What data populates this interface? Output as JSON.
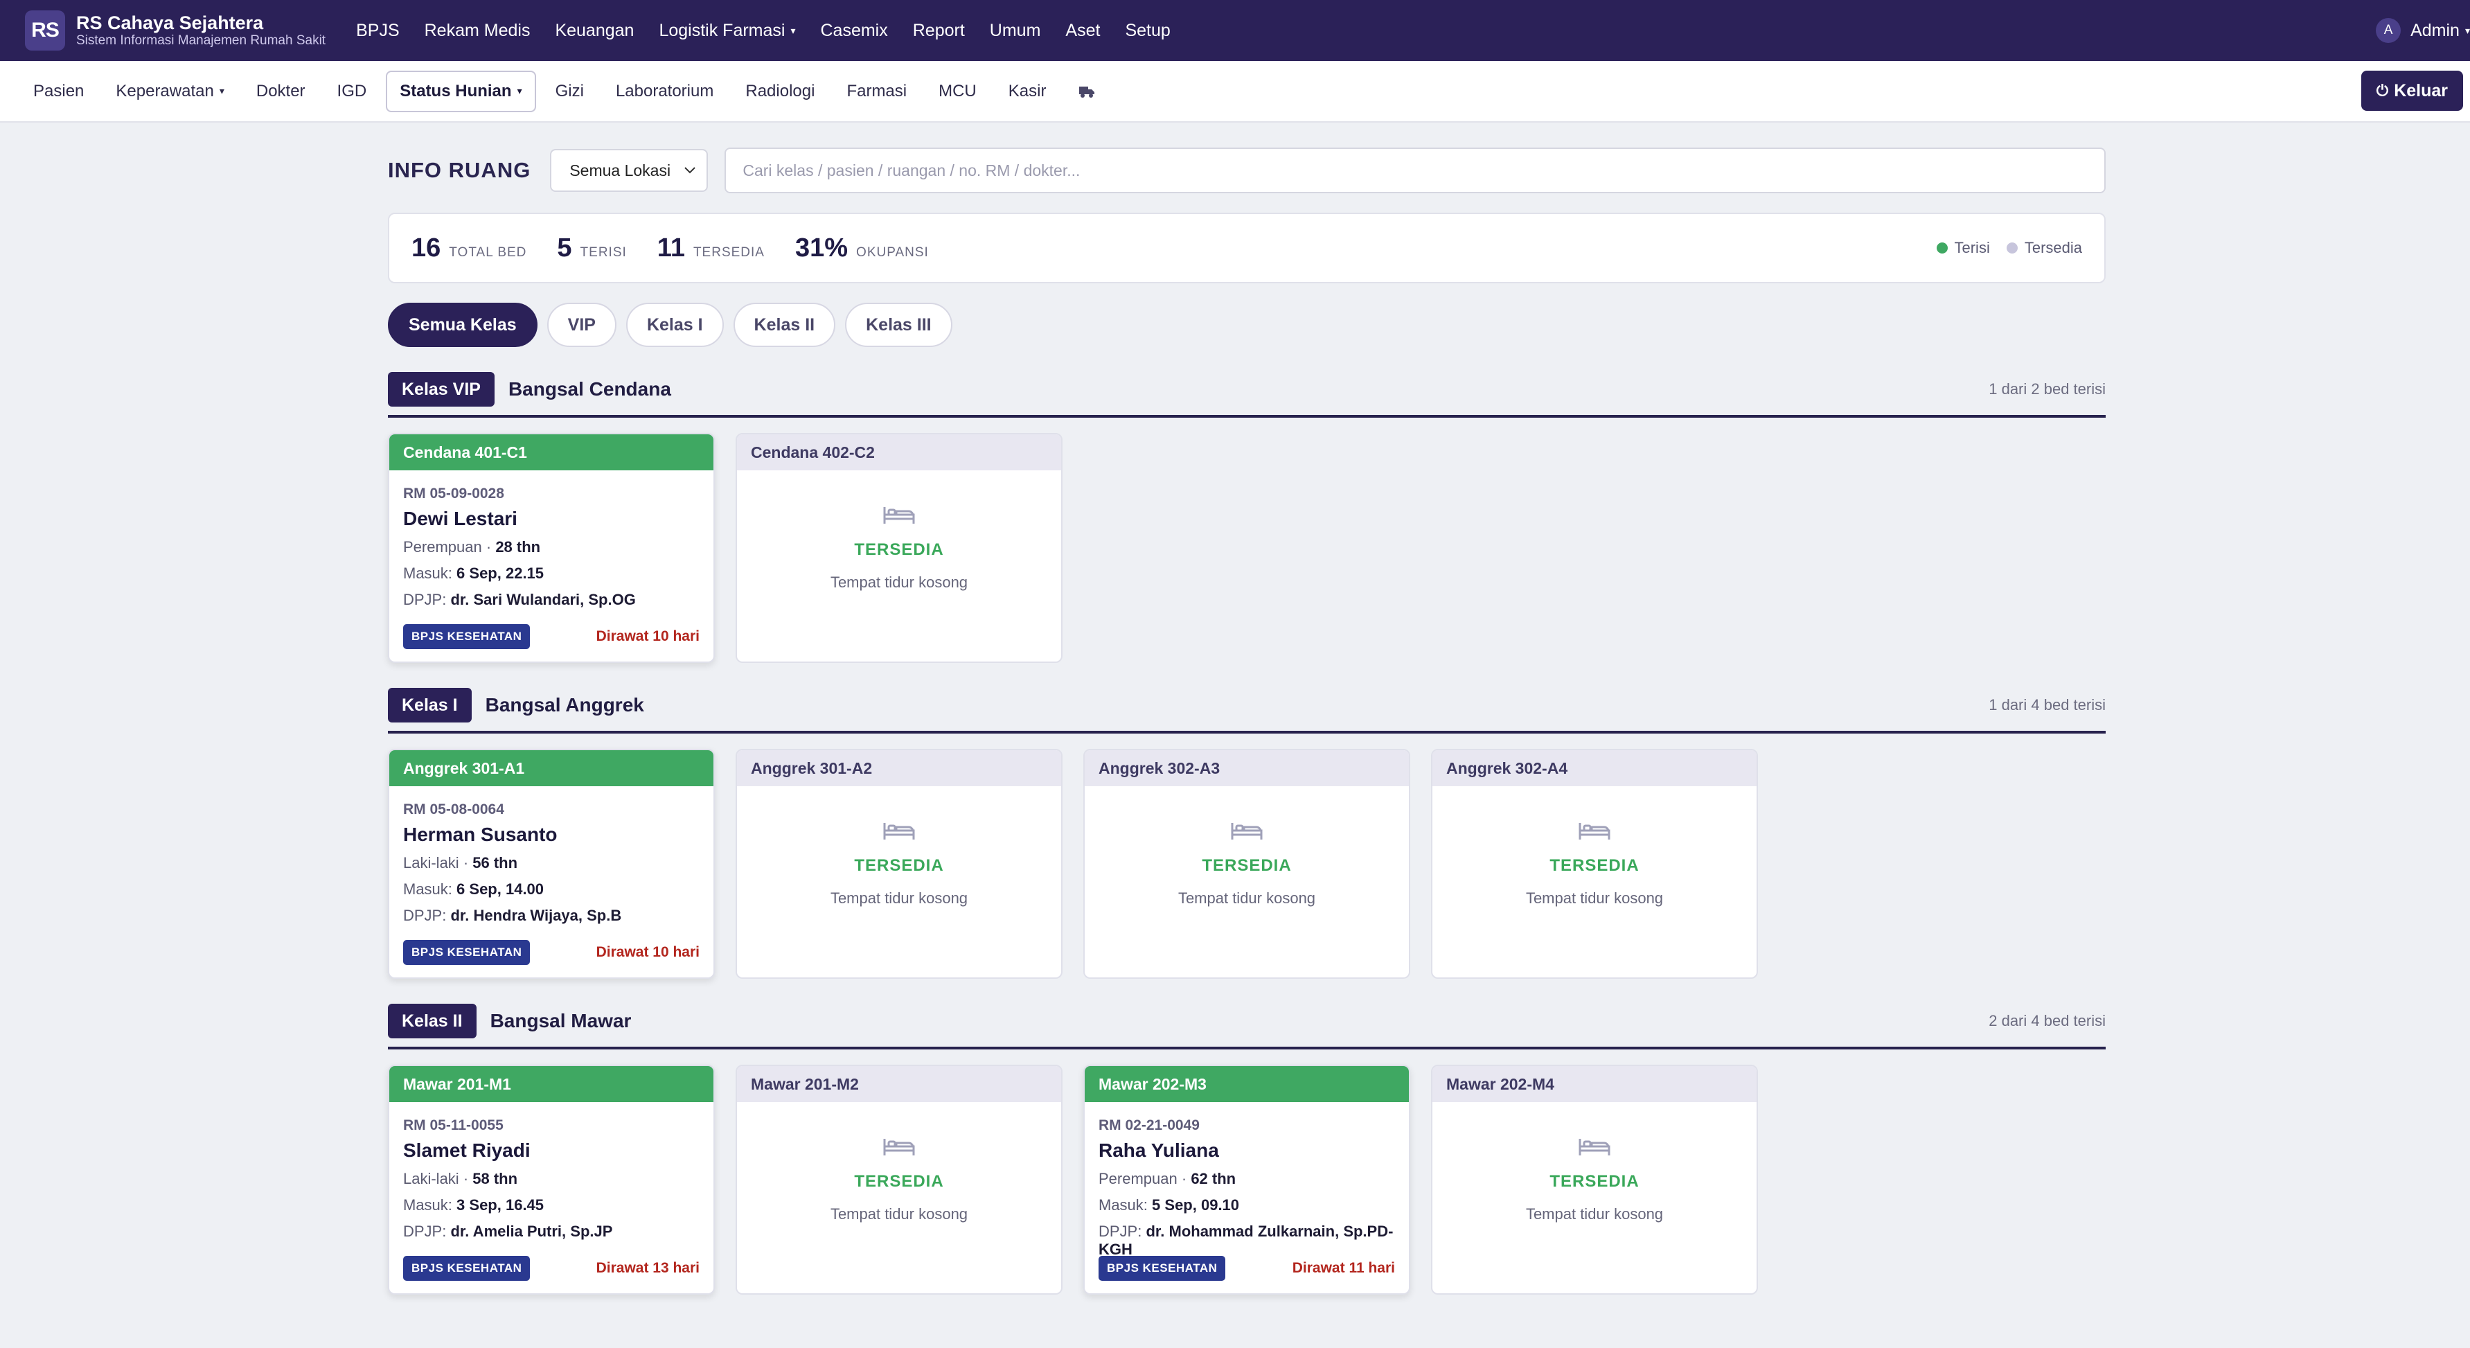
{
  "app": {
    "logo": "RS",
    "title": "RS Cahaya Sejahtera",
    "subtitle": "Sistem Informasi Manajemen Rumah Sakit"
  },
  "topnav": [
    "BPJS",
    "Rekam Medis",
    "Keuangan",
    "Logistik Farmasi",
    "Casemix",
    "Report",
    "Umum",
    "Aset",
    "Setup"
  ],
  "user": {
    "initial": "A",
    "name": "Admin"
  },
  "subnav": [
    "Pasien",
    "Keperawatan",
    "Dokter",
    "IGD",
    "Status Hunian",
    "Gizi",
    "Laboratorium",
    "Radiologi",
    "Farmasi",
    "MCU",
    "Kasir"
  ],
  "logout_label": "Keluar",
  "page": {
    "title": "INFO RUANG",
    "location_select": "Semua Lokasi",
    "search_placeholder": "Cari kelas / pasien / ruangan / no. RM / dokter..."
  },
  "stats": {
    "total_bed": "16",
    "total_bed_label": "TOTAL BED",
    "terisi": "5",
    "terisi_label": "TERISI",
    "tersedia": "11",
    "tersedia_label": "TERSEDIA",
    "okupansi": "31%",
    "okupansi_label": "OKUPANSI"
  },
  "legend": {
    "terisi": "Terisi",
    "tersedia": "Tersedia",
    "terisi_color": "#3fa862",
    "tersedia_color": "#c7c5dc"
  },
  "filters": [
    "Semua Kelas",
    "VIP",
    "Kelas I",
    "Kelas II",
    "Kelas III"
  ],
  "labels": {
    "masuk": "Masuk:",
    "dpjp": "DPJP:",
    "available": "TERSEDIA",
    "available_sub": "Tempat tidur kosong",
    "bpjs": "BPJS KESEHATAN"
  },
  "wards": [
    {
      "class": "Kelas VIP",
      "name": "Bangsal Cendana",
      "count": "1 dari 2 bed terisi",
      "beds": [
        {
          "code": "Cendana 401-C1",
          "occupied": true,
          "rm": "RM 05-09-0028",
          "patient": "Dewi Lestari",
          "gender": "Perempuan",
          "age": "28 thn",
          "masuk": "6 Sep, 22.15",
          "dpjp": "dr. Sari Wulandari, Sp.OG",
          "stay": "Dirawat 10 hari"
        },
        {
          "code": "Cendana 402-C2",
          "occupied": false
        }
      ]
    },
    {
      "class": "Kelas I",
      "name": "Bangsal Anggrek",
      "count": "1 dari 4 bed terisi",
      "beds": [
        {
          "code": "Anggrek 301-A1",
          "occupied": true,
          "rm": "RM 05-08-0064",
          "patient": "Herman Susanto",
          "gender": "Laki-laki",
          "age": "56 thn",
          "masuk": "6 Sep, 14.00",
          "dpjp": "dr. Hendra Wijaya, Sp.B",
          "stay": "Dirawat 10 hari"
        },
        {
          "code": "Anggrek 301-A2",
          "occupied": false
        },
        {
          "code": "Anggrek 302-A3",
          "occupied": false
        },
        {
          "code": "Anggrek 302-A4",
          "occupied": false
        }
      ]
    },
    {
      "class": "Kelas II",
      "name": "Bangsal Mawar",
      "count": "2 dari 4 bed terisi",
      "beds": [
        {
          "code": "Mawar 201-M1",
          "occupied": true,
          "rm": "RM 05-11-0055",
          "patient": "Slamet Riyadi",
          "gender": "Laki-laki",
          "age": "58 thn",
          "masuk": "3 Sep, 16.45",
          "dpjp": "dr. Amelia Putri, Sp.JP",
          "stay": "Dirawat 13 hari"
        },
        {
          "code": "Mawar 201-M2",
          "occupied": false
        },
        {
          "code": "Mawar 202-M3",
          "occupied": true,
          "rm": "RM 02-21-0049",
          "patient": "Raha Yuliana",
          "gender": "Perempuan",
          "age": "62 thn",
          "masuk": "5 Sep, 09.10",
          "dpjp": "dr. Mohammad Zulkarnain, Sp.PD-KGH",
          "stay": "Dirawat 11 hari"
        },
        {
          "code": "Mawar 202-M4",
          "occupied": false
        }
      ]
    }
  ]
}
